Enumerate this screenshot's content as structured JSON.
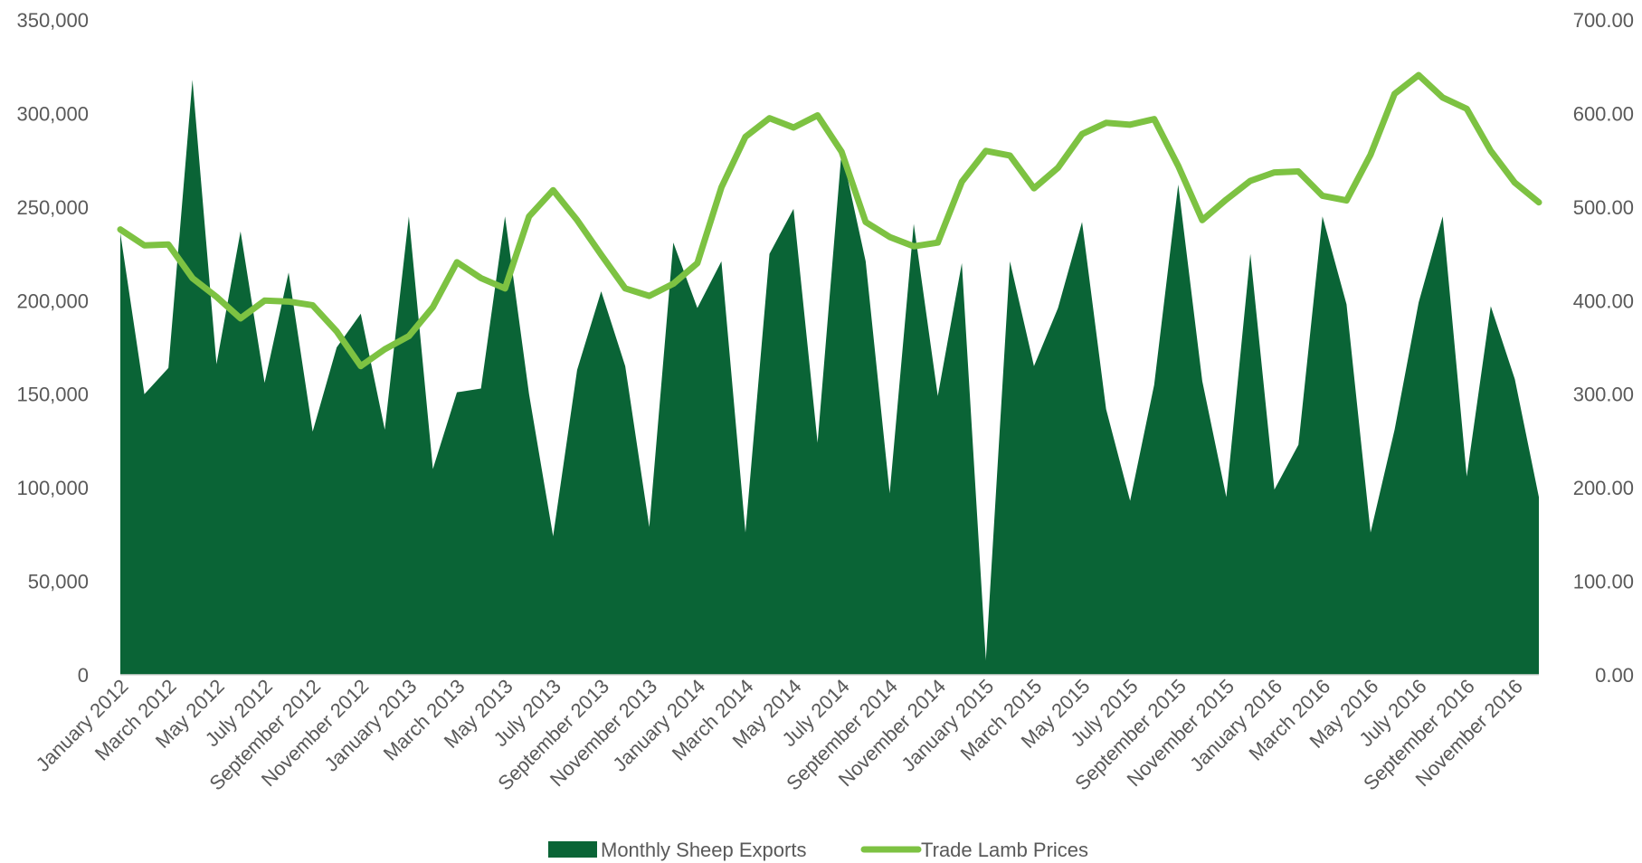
{
  "chart_data": {
    "type": "area",
    "categories": [
      "January 2012",
      "February 2012",
      "March 2012",
      "April 2012",
      "May 2012",
      "June 2012",
      "July 2012",
      "August 2012",
      "September 2012",
      "October 2012",
      "November 2012",
      "December 2012",
      "January 2013",
      "February 2013",
      "March 2013",
      "April 2013",
      "May 2013",
      "June 2013",
      "July 2013",
      "August 2013",
      "September 2013",
      "October 2013",
      "November 2013",
      "December 2013",
      "January 2014",
      "February 2014",
      "March 2014",
      "April 2014",
      "May 2014",
      "June 2014",
      "July 2014",
      "August 2014",
      "September 2014",
      "October 2014",
      "November 2014",
      "December 2014",
      "January 2015",
      "February 2015",
      "March 2015",
      "April 2015",
      "May 2015",
      "June 2015",
      "July 2015",
      "August 2015",
      "September 2015",
      "October 2015",
      "November 2015",
      "December 2015",
      "January 2016",
      "February 2016",
      "March 2016",
      "April 2016",
      "May 2016",
      "June 2016",
      "July 2016",
      "August 2016",
      "September 2016",
      "October 2016",
      "November 2016",
      "December 2016"
    ],
    "x_tick_labels": [
      "January 2012",
      "March 2012",
      "May 2012",
      "July 2012",
      "September 2012",
      "November 2012",
      "January 2013",
      "March 2013",
      "May 2013",
      "July 2013",
      "September 2013",
      "November 2013",
      "January 2014",
      "March 2014",
      "May 2014",
      "July 2014",
      "September 2014",
      "November 2014",
      "January 2015",
      "March 2015",
      "May 2015",
      "July 2015",
      "September 2015",
      "November 2015",
      "January 2016",
      "March 2016",
      "May 2016",
      "July 2016",
      "September 2016",
      "November 2016"
    ],
    "y_left": {
      "ylim": [
        0,
        350000
      ],
      "ticks": [
        "0",
        "50,000",
        "100,000",
        "150,000",
        "200,000",
        "250,000",
        "300,000",
        "350,000"
      ]
    },
    "y_right": {
      "ylim": [
        0,
        700
      ],
      "ticks": [
        "0.00",
        "100.00",
        "200.00",
        "300.00",
        "400.00",
        "500.00",
        "600.00",
        "700.00"
      ]
    },
    "series": [
      {
        "name": "Monthly Sheep Exports",
        "type": "area",
        "axis": "left",
        "color": "#0a6436",
        "values": [
          236000,
          150000,
          164000,
          318000,
          166000,
          237000,
          156000,
          215000,
          130000,
          175000,
          193000,
          131000,
          245000,
          110000,
          151000,
          153000,
          245000,
          150000,
          74000,
          163000,
          205000,
          165000,
          79000,
          231000,
          196000,
          221000,
          76000,
          225000,
          249000,
          124000,
          280000,
          221000,
          97000,
          241000,
          149000,
          220000,
          8000,
          221000,
          165000,
          196000,
          242000,
          142000,
          93000,
          155000,
          262000,
          157000,
          95000,
          225000,
          99000,
          123000,
          245000,
          198000,
          76000,
          131000,
          199000,
          245000,
          106000,
          197000,
          158000,
          95000
        ]
      },
      {
        "name": "Trade Lamb Prices",
        "type": "line",
        "axis": "right",
        "color": "#7dc242",
        "values": [
          476,
          459,
          460,
          424,
          404,
          381,
          400,
          399,
          395,
          367,
          330,
          348,
          362,
          393,
          441,
          424,
          413,
          490,
          518,
          486,
          449,
          413,
          405,
          418,
          440,
          521,
          575,
          595,
          585,
          598,
          559,
          484,
          468,
          458,
          462,
          527,
          560,
          555,
          520,
          542,
          578,
          590,
          588,
          594,
          544,
          486,
          508,
          528,
          537,
          538,
          512,
          507,
          556,
          621,
          641,
          617,
          605,
          560,
          526,
          505
        ]
      }
    ],
    "legend": {
      "position": "bottom"
    },
    "grid": false
  }
}
